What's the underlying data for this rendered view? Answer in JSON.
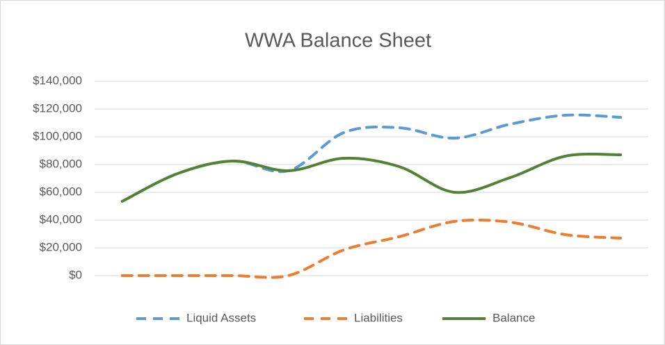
{
  "chart_data": {
    "type": "line",
    "title": "WWA Balance Sheet",
    "categories": [
      null,
      null,
      null,
      null,
      null,
      null,
      null,
      null,
      null,
      null
    ],
    "series": [
      {
        "name": "Liquid Assets",
        "color": "#5b9bd5",
        "dashed": true,
        "values": [
          53500,
          73500,
          82500,
          75500,
          103000,
          106500,
          99000,
          109000,
          115500,
          114000
        ]
      },
      {
        "name": "Liabilities",
        "color": "#ed7d31",
        "dashed": true,
        "values": [
          0,
          0,
          0,
          0,
          18500,
          28000,
          39000,
          38500,
          29500,
          27000
        ]
      },
      {
        "name": "Balance",
        "color": "#548235",
        "dashed": false,
        "values": [
          53500,
          73500,
          82500,
          75500,
          84500,
          78500,
          60000,
          70500,
          86000,
          87000
        ]
      }
    ],
    "ylim": [
      0,
      140000
    ],
    "yticks": [
      {
        "value": 0,
        "label": "$0"
      },
      {
        "value": 20000,
        "label": "$20,000"
      },
      {
        "value": 40000,
        "label": "$40,000"
      },
      {
        "value": 60000,
        "label": "$60,000"
      },
      {
        "value": 80000,
        "label": "$80,000"
      },
      {
        "value": 100000,
        "label": "$100,000"
      },
      {
        "value": 120000,
        "label": "$120,000"
      },
      {
        "value": 140000,
        "label": "$140,000"
      }
    ],
    "grid": true,
    "legend": "bottom"
  }
}
